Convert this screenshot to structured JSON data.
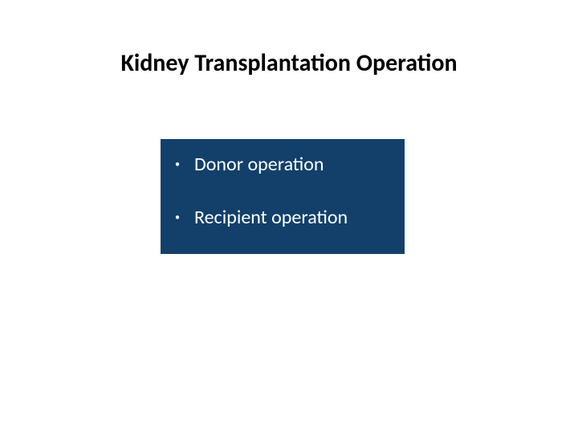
{
  "slide": {
    "title": "Kidney Transplantation Operation",
    "title_fontsize": 30,
    "title_color": "#000000",
    "background_color": "#ffffff",
    "box": {
      "background_color": "#12406b",
      "text_color": "#ffffff",
      "item_fontsize": 24,
      "bullet_char": "•",
      "items": [
        {
          "label": "Donor operation"
        },
        {
          "label": "Recipient operation"
        }
      ]
    }
  }
}
